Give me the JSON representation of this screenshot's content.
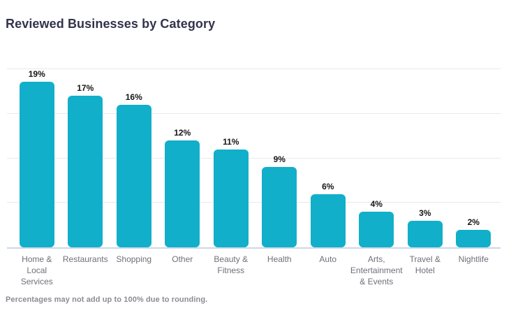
{
  "title": "Reviewed Businesses by Category",
  "footnote": "Percentages may not add up to 100% due to rounding.",
  "colors": {
    "background": "#ffffff",
    "bar": "#11afc9",
    "title_text": "#32324b",
    "value_label_text": "#161616",
    "category_label_text": "#6f6f7a",
    "gridline": "#e9e9ed",
    "axis_line": "#ccd7e6",
    "footnote_text": "#8b8b95"
  },
  "chart_data": {
    "type": "bar",
    "title": "Reviewed Businesses by Category",
    "xlabel": "",
    "ylabel": "",
    "ylim": [
      0,
      20
    ],
    "grid": true,
    "grid_step": 5,
    "legend": false,
    "y_tick_labels_shown": false,
    "categories": [
      "Home & Local Services",
      "Restaurants",
      "Shopping",
      "Other",
      "Beauty & Fitness",
      "Health",
      "Auto",
      "Arts, Entertainment & Events",
      "Travel & Hotel",
      "Nightlife"
    ],
    "category_lines": [
      [
        "Home &",
        "Local",
        "Services"
      ],
      [
        "Restaurants"
      ],
      [
        "Shopping"
      ],
      [
        "Other"
      ],
      [
        "Beauty &",
        "Fitness"
      ],
      [
        "Health"
      ],
      [
        "Auto"
      ],
      [
        "Arts,",
        "Entertainment",
        "& Events"
      ],
      [
        "Travel &",
        "Hotel"
      ],
      [
        "Nightlife"
      ]
    ],
    "values": [
      19,
      17,
      16,
      12,
      11,
      9,
      6,
      4,
      3,
      2
    ],
    "value_labels": [
      "19%",
      "17%",
      "16%",
      "12%",
      "11%",
      "9%",
      "6%",
      "4%",
      "3%",
      "2%"
    ]
  }
}
